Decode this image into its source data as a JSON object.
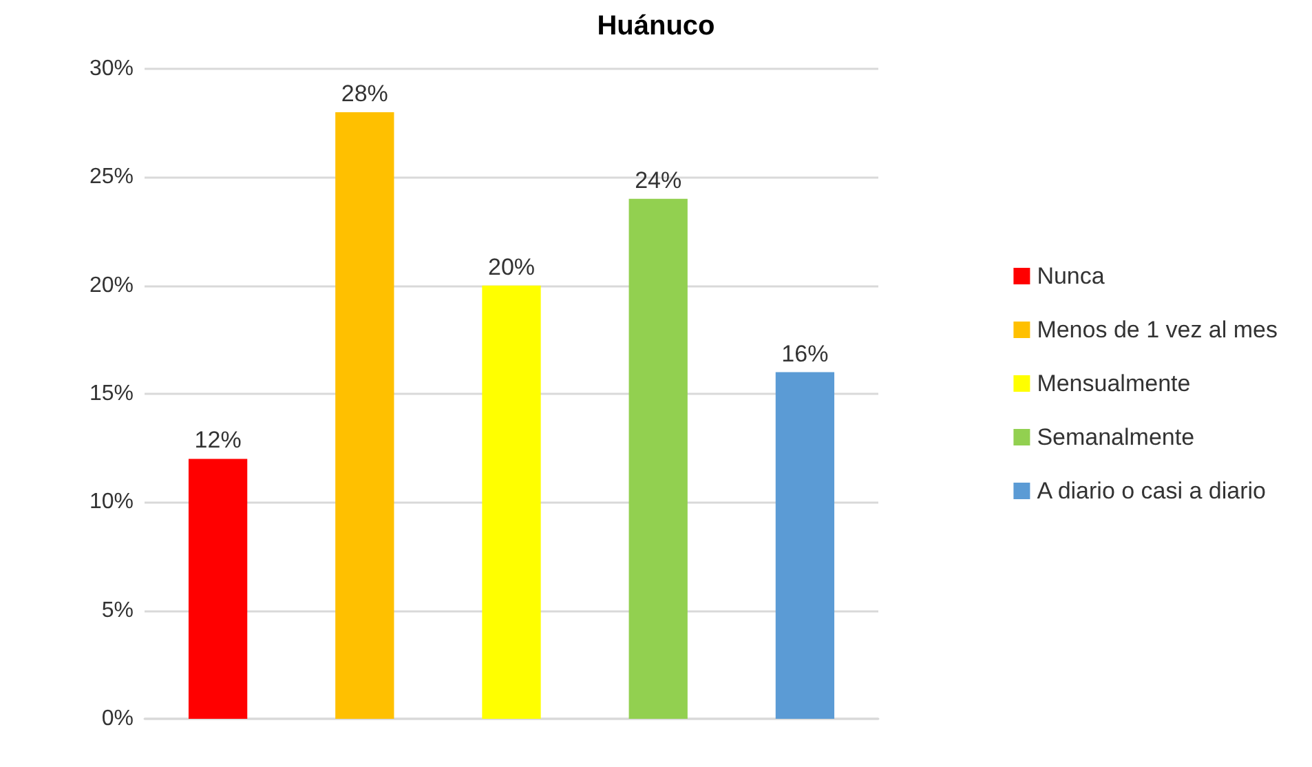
{
  "chart_data": {
    "type": "bar",
    "title": "Huánuco",
    "categories": [
      null,
      null,
      null,
      null,
      null
    ],
    "series": [
      {
        "name": "Nunca",
        "color": "#ff0000",
        "values": [
          12,
          null,
          null,
          null,
          null
        ],
        "value_labels": [
          "12%",
          null,
          null,
          null,
          null
        ]
      },
      {
        "name": "Menos de 1 vez al mes",
        "color": "#ffc000",
        "values": [
          null,
          28,
          null,
          null,
          null
        ],
        "value_labels": [
          null,
          "28%",
          null,
          null,
          null
        ]
      },
      {
        "name": "Mensualmente",
        "color": "#ffff00",
        "values": [
          null,
          null,
          20,
          null,
          null
        ],
        "value_labels": [
          null,
          null,
          "20%",
          null,
          null
        ]
      },
      {
        "name": "Semanalmente",
        "color": "#92d050",
        "values": [
          null,
          null,
          null,
          24,
          null
        ],
        "value_labels": [
          null,
          null,
          null,
          "24%",
          null
        ]
      },
      {
        "name": "A diario o casi a diario",
        "color": "#5b9bd5",
        "values": [
          null,
          null,
          null,
          null,
          16
        ],
        "value_labels": [
          null,
          null,
          null,
          null,
          "16%"
        ]
      }
    ],
    "stacked": true,
    "ylim": [
      0,
      30
    ],
    "yticks": [
      {
        "value": 0,
        "label": "0%"
      },
      {
        "value": 5,
        "label": "5%"
      },
      {
        "value": 10,
        "label": "10%"
      },
      {
        "value": 15,
        "label": "15%"
      },
      {
        "value": 20,
        "label": "20%"
      },
      {
        "value": 25,
        "label": "25%"
      },
      {
        "value": 30,
        "label": "30%"
      }
    ],
    "grid": "y",
    "legend": "right"
  }
}
